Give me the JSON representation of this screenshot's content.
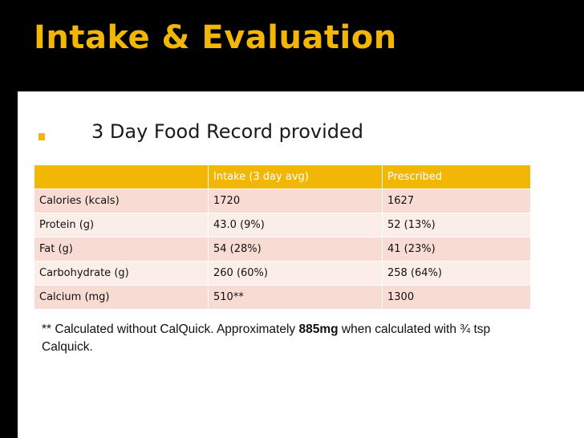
{
  "slide": {
    "title": "Intake & Evaluation",
    "bullet": "3 Day Food Record provided"
  },
  "table": {
    "headers": [
      "",
      "Intake (3 day avg)",
      "Prescribed"
    ],
    "rows": [
      [
        "Calories (kcals)",
        "1720",
        "1627"
      ],
      [
        "Protein (g)",
        "43.0 (9%)",
        "52 (13%)"
      ],
      [
        "Fat (g)",
        "54 (28%)",
        "41 (23%)"
      ],
      [
        "Carbohydrate (g)",
        "260 (60%)",
        "258 (64%)"
      ],
      [
        "Calcium (mg)",
        "510**",
        "1300"
      ]
    ]
  },
  "footnote": {
    "part1": "**  Calculated without CalQuick.  Approximately ",
    "bold": "885mg",
    "part2": " when calculated with ¾ tsp Calquick."
  },
  "colors": {
    "background": "#000000",
    "accent": "#f2b705",
    "row_odd": "#f8dcd3",
    "row_even": "#fbeee8"
  }
}
